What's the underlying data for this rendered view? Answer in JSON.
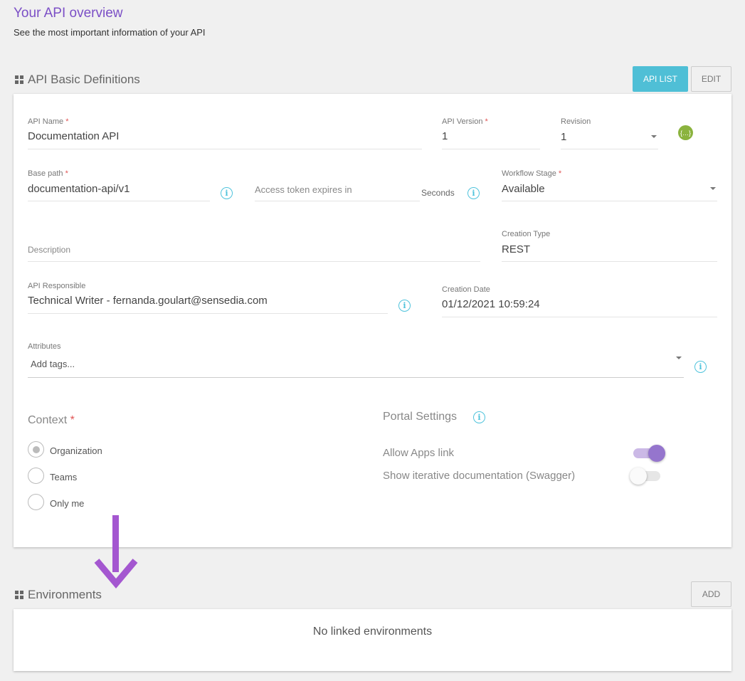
{
  "header": {
    "title": "Your API overview",
    "subtitle": "See the most important information of your API"
  },
  "basic": {
    "title": "API Basic Definitions",
    "api_list_label": "API LIST",
    "edit_label": "EDIT",
    "api_name_label": "API Name",
    "api_name": "Documentation API",
    "api_version_label": "API Version",
    "api_version": "1",
    "revision_label": "Revision",
    "revision": "1",
    "base_path_label": "Base path",
    "base_path": "documentation-api/v1",
    "token_placeholder": "Access token expires in",
    "token_unit": "Seconds",
    "workflow_label": "Workflow Stage",
    "workflow": "Available",
    "description_placeholder": "Description",
    "creation_type_label": "Creation Type",
    "creation_type": "REST",
    "responsible_label": "API Responsible",
    "responsible": "Technical Writer - fernanda.goulart@sensedia.com",
    "creation_date_label": "Creation Date",
    "creation_date": "01/12/2021 10:59:24",
    "attributes_label": "Attributes",
    "attributes_placeholder": "Add tags...",
    "required_mark": "*",
    "context": {
      "title": "Context",
      "options": [
        "Organization",
        "Teams",
        "Only me"
      ],
      "selected": "Organization"
    },
    "portal": {
      "title": "Portal Settings",
      "allow_apps_label": "Allow Apps link",
      "allow_apps": true,
      "swagger_label": "Show iterative documentation (Swagger)",
      "swagger": false
    }
  },
  "environments": {
    "title": "Environments",
    "add_label": "ADD",
    "empty": "No linked environments"
  },
  "colors": {
    "accent": "#7b4fc6",
    "primary_button": "#4fbfd6",
    "info": "#4fc3dc",
    "toggle_on": "#9575cd",
    "arrow": "#a457d0"
  }
}
